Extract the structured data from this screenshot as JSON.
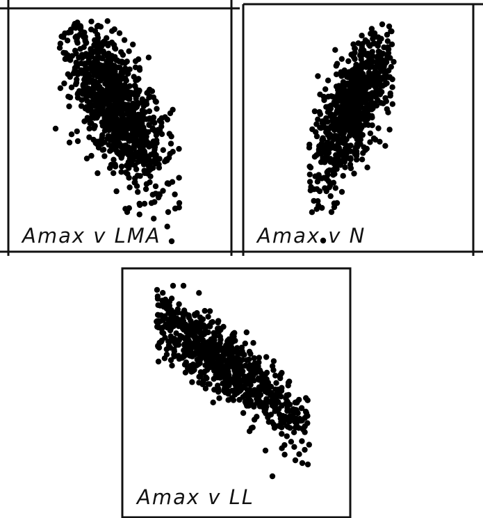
{
  "figure": {
    "colors": {
      "points": "#000000",
      "frame": "#111111",
      "background": "#ffffff"
    }
  },
  "chart_data": [
    {
      "type": "scatter",
      "title": "Amax v LMA",
      "relation": "negative",
      "point_count": 1000,
      "xlabel": "",
      "ylabel": "",
      "grid": false
    },
    {
      "type": "scatter",
      "title": "Amax v N",
      "relation": "positive",
      "point_count": 750,
      "xlabel": "",
      "ylabel": "",
      "grid": false
    },
    {
      "type": "scatter",
      "title": "Amax v LL",
      "relation": "negative",
      "point_count": 800,
      "xlabel": "",
      "ylabel": "",
      "grid": false
    }
  ]
}
